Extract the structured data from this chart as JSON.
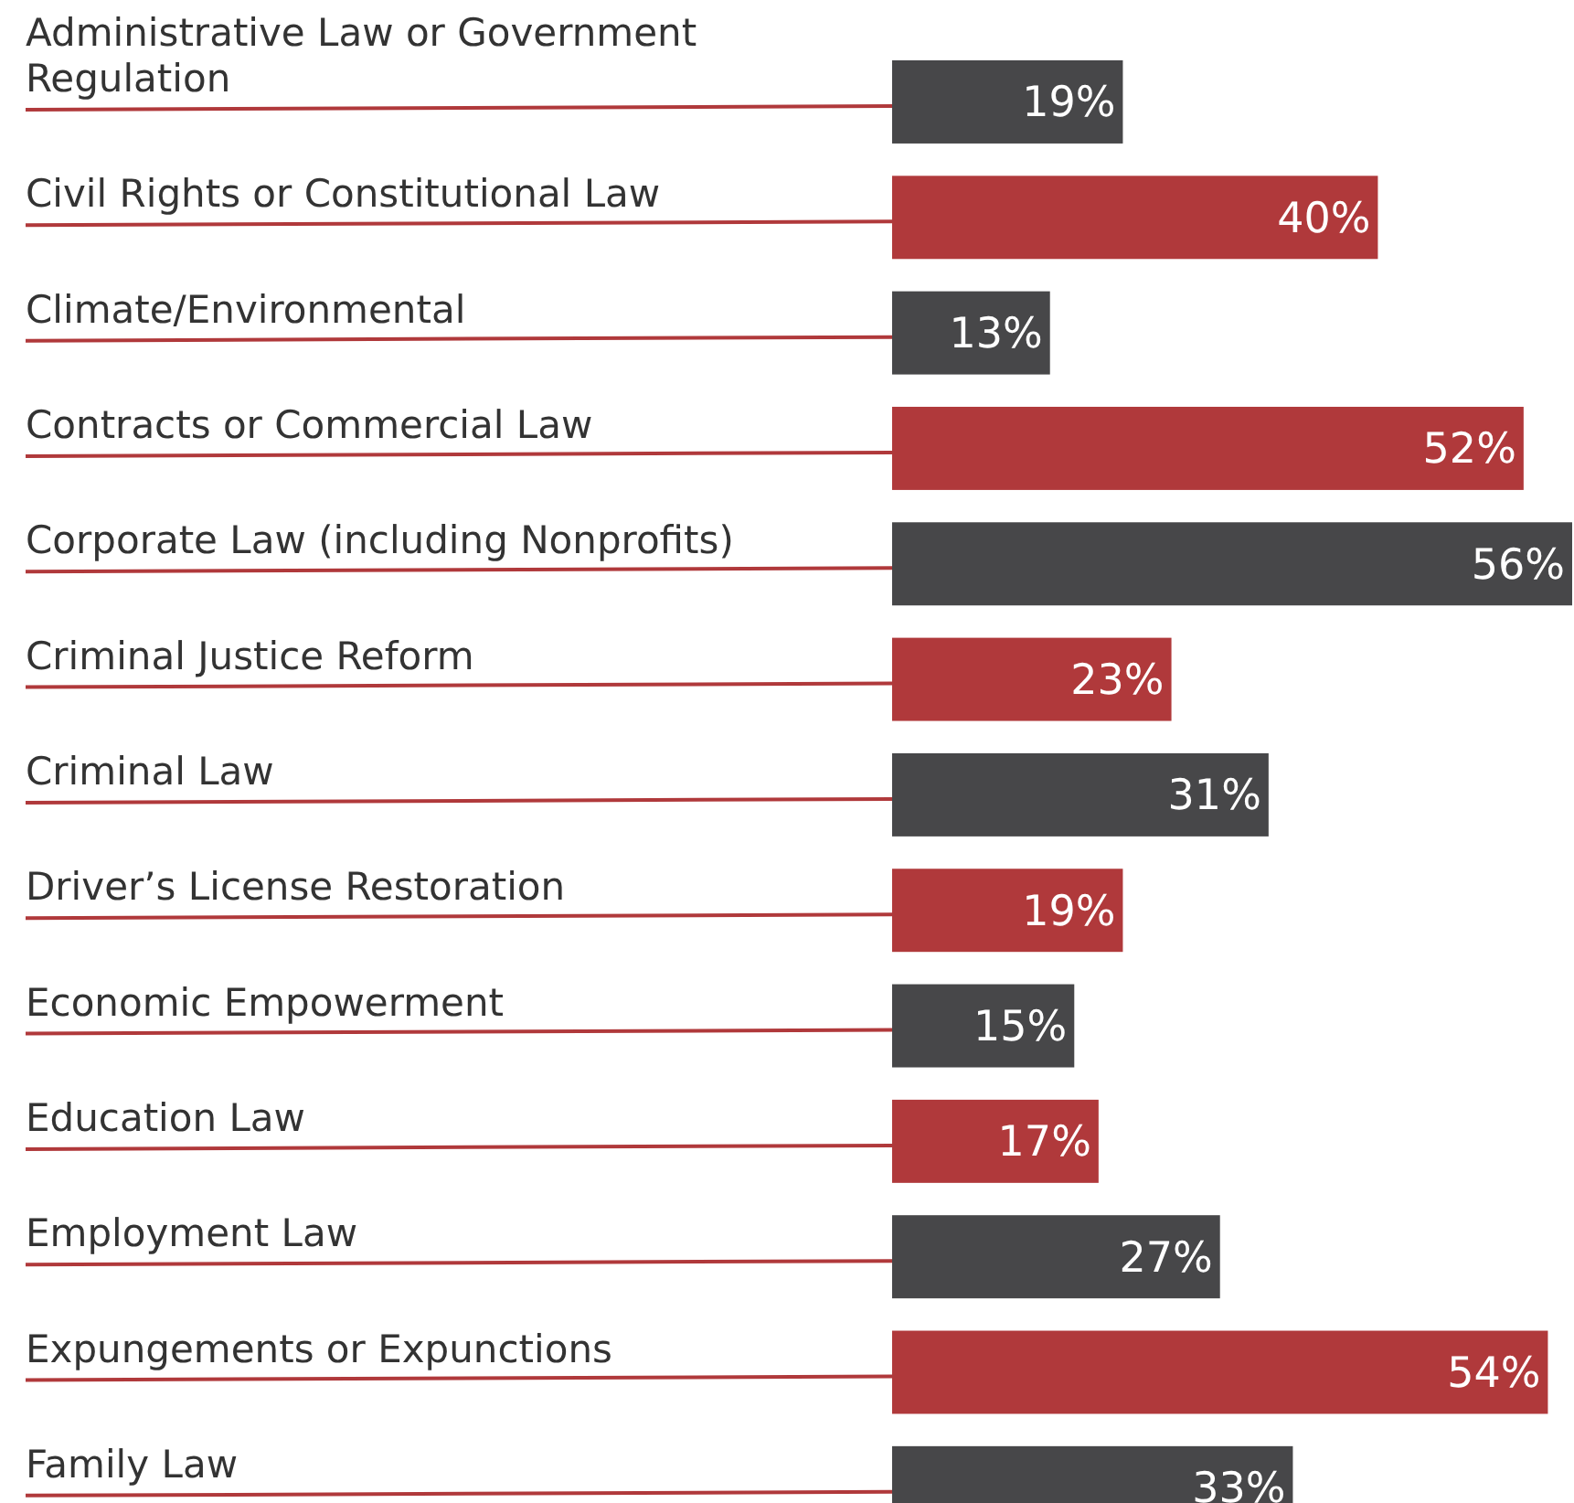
{
  "chart_data": {
    "type": "bar",
    "orientation": "horizontal",
    "categories": [
      "Administrative Law or Government Regulation",
      "Civil Rights or Constitutional Law",
      "Climate/Environmental",
      "Contracts or Commercial Law",
      "Corporate Law (including Nonprofits)",
      "Criminal Justice Reform",
      "Criminal Law",
      "Driver’s License Restoration",
      "Economic Empowerment",
      "Education Law",
      "Employment Law",
      "Expungements or Expunctions",
      "Family Law"
    ],
    "values": [
      19,
      40,
      13,
      52,
      56,
      23,
      31,
      19,
      15,
      17,
      27,
      54,
      33
    ],
    "value_labels": [
      "19%",
      "40%",
      "13%",
      "52%",
      "56%",
      "23%",
      "31%",
      "19%",
      "15%",
      "17%",
      "27%",
      "54%",
      "33%"
    ],
    "colors": [
      "#474749",
      "#b0393b",
      "#474749",
      "#b0393b",
      "#474749",
      "#b0393b",
      "#474749",
      "#b0393b",
      "#474749",
      "#b0393b",
      "#474749",
      "#b0393b",
      "#474749"
    ]
  }
}
